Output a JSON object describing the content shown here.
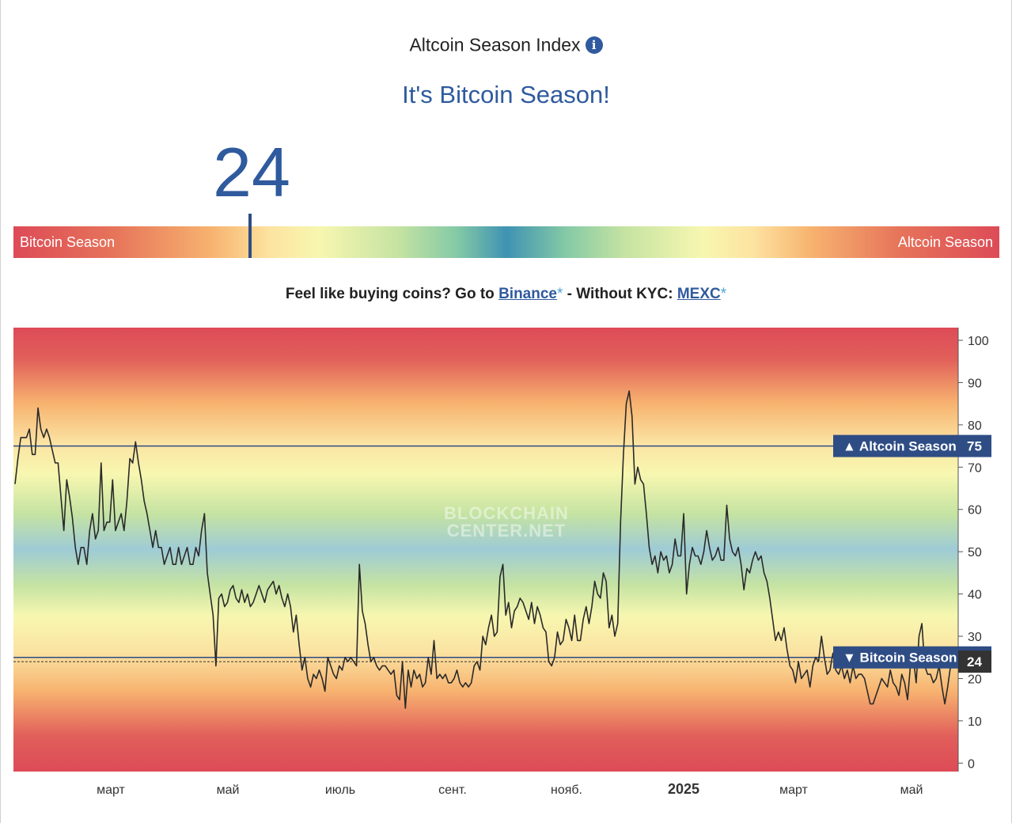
{
  "header": {
    "title": "Altcoin Season Index",
    "info_icon": "info-icon"
  },
  "status": "It's Bitcoin Season!",
  "current_value": "24",
  "gauge": {
    "left_label": "Bitcoin Season",
    "right_label": "Altcoin Season",
    "value": 24
  },
  "promo": {
    "prefix": "Feel like buying coins? Go to",
    "link1": "Binance",
    "star1": "*",
    "middle": "- Without KYC:",
    "link2": "MEXC",
    "star2": "*"
  },
  "watermark": [
    "BLOCKCHAIN",
    "CENTER.NET"
  ],
  "colors": {
    "accent": "#2f5a9e",
    "label_box": "#2f4d85",
    "current_box": "#333333",
    "red": "#dd4b57",
    "orange": "#f7b26f",
    "yellow": "#f7f7b0",
    "green": "#84c9a6",
    "blue": "#9ec8d8"
  },
  "chart_data": {
    "type": "line",
    "x_tick_labels": [
      "март",
      "май",
      "июль",
      "сент.",
      "нояб.",
      "2025",
      "март",
      "май"
    ],
    "y_ticks": [
      0,
      10,
      20,
      30,
      40,
      50,
      60,
      70,
      80,
      90,
      100
    ],
    "ylim": [
      -2,
      103
    ],
    "reference_lines": [
      {
        "label": "▲ Altcoin Season",
        "value": 75
      },
      {
        "label": "▼ Bitcoin Season",
        "value": 25
      }
    ],
    "current_value": 24,
    "series": [
      {
        "values": [
          66,
          72,
          77,
          77,
          77,
          79,
          73,
          73,
          84,
          79,
          77,
          79,
          77,
          74,
          71,
          71,
          63,
          55,
          67,
          63,
          58,
          51,
          47,
          51,
          51,
          47,
          55,
          59,
          53,
          55,
          71,
          55,
          57,
          57,
          67,
          55,
          57,
          59,
          55,
          62,
          72,
          71,
          76,
          71,
          67,
          62,
          59,
          55,
          51,
          55,
          51,
          51,
          47,
          49,
          51,
          47,
          47,
          51,
          47,
          49,
          51,
          47,
          47,
          51,
          49,
          55,
          59,
          45,
          40,
          35,
          23,
          39,
          40,
          37,
          38,
          41,
          42,
          39,
          38,
          41,
          38,
          40,
          37,
          38,
          40,
          42,
          40,
          38,
          41,
          42,
          43,
          40,
          42,
          39,
          37,
          40,
          37,
          31,
          35,
          28,
          22,
          25,
          20,
          18,
          21,
          20,
          22,
          20,
          17,
          25,
          23,
          21,
          20,
          23,
          22,
          25,
          24,
          25,
          24,
          23,
          47,
          36,
          33,
          28,
          24,
          25,
          23,
          22,
          23,
          23,
          22,
          21,
          22,
          16,
          15,
          24,
          13,
          22,
          18,
          22,
          20,
          21,
          18,
          19,
          25,
          21,
          29,
          20,
          21,
          20,
          21,
          19,
          19,
          20,
          22,
          19,
          18,
          19,
          18,
          19,
          23,
          24,
          22,
          30,
          28,
          32,
          35,
          30,
          31,
          44,
          47,
          35,
          38,
          32,
          36,
          37,
          39,
          38,
          36,
          34,
          38,
          33,
          37,
          35,
          32,
          31,
          24,
          23,
          25,
          31,
          28,
          29,
          34,
          32,
          29,
          35,
          29,
          29,
          34,
          37,
          33,
          37,
          43,
          40,
          39,
          45,
          43,
          32,
          35,
          30,
          33,
          57,
          73,
          85,
          88,
          82,
          66,
          70,
          67,
          66,
          59,
          51,
          47,
          49,
          45,
          50,
          48,
          49,
          45,
          47,
          53,
          49,
          49,
          59,
          40,
          47,
          51,
          49,
          49,
          47,
          50,
          55,
          51,
          48,
          49,
          51,
          48,
          48,
          61,
          53,
          50,
          49,
          51,
          47,
          41,
          46,
          45,
          48,
          50,
          48,
          49,
          45,
          43,
          39,
          34,
          29,
          31,
          29,
          32,
          27,
          23,
          22,
          19,
          24,
          20,
          21,
          22,
          18,
          23,
          25,
          24,
          30,
          25,
          21,
          22,
          26,
          22,
          21,
          23,
          20,
          22,
          19,
          23,
          20,
          21,
          21,
          20,
          17,
          14,
          14,
          16,
          18,
          20,
          19,
          18,
          22,
          19,
          18,
          16,
          21,
          19,
          15,
          23,
          25,
          19,
          30,
          33,
          23,
          21,
          21,
          19,
          20,
          23,
          18,
          14,
          18,
          23,
          24
        ]
      }
    ]
  }
}
